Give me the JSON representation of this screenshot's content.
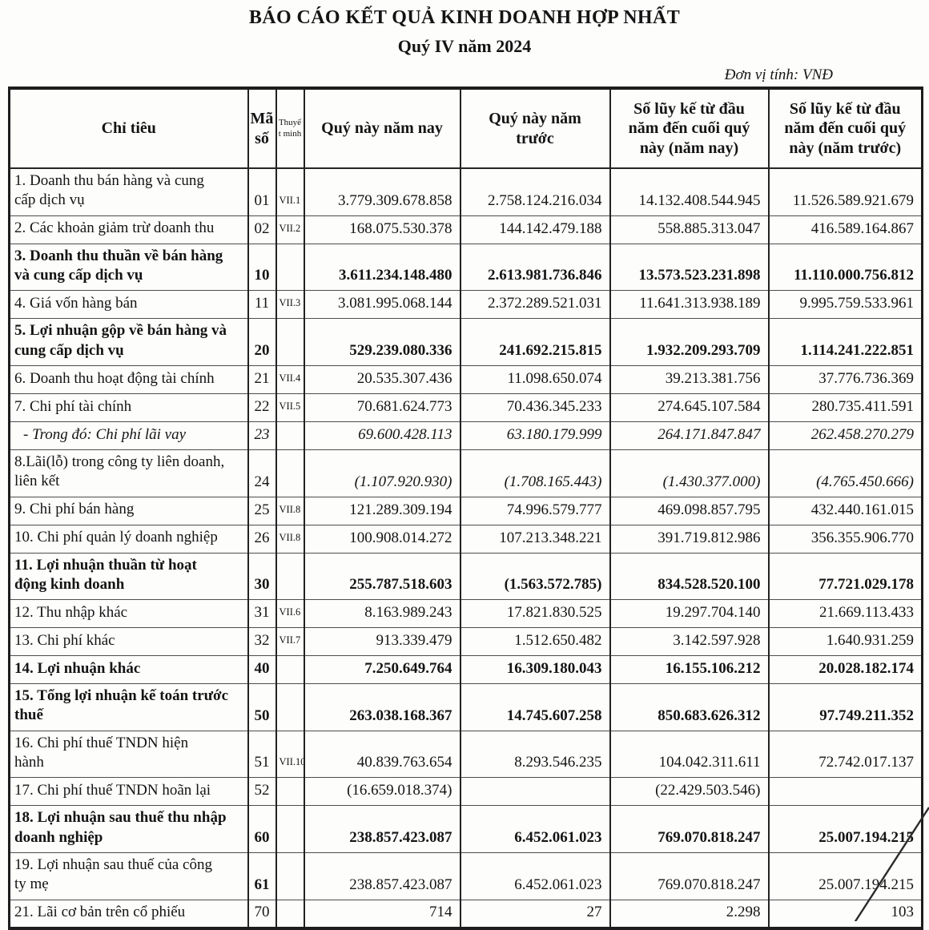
{
  "title": "BÁO CÁO KẾT QUẢ KINH DOANH HỢP NHẤT",
  "subtitle": "Quý IV năm 2024",
  "unit_note": "Đơn vị tính: VNĐ",
  "table": {
    "headers": [
      "Chỉ tiêu",
      "Mã\nsố",
      "Thuyế\nt minh",
      "Quý này năm nay",
      "Quý này năm\ntrước",
      "Số lũy kế từ đầu\nnăm đến cuối quý\nnày (năm nay)",
      "Số lũy kế từ đầu\nnăm đến cuối quý\nnày (năm trước)"
    ],
    "rows": [
      {
        "label": "1. Doanh thu bán hàng và cung\ncấp dịch vụ",
        "code": "01",
        "note": "VII.1",
        "style": "",
        "values": [
          "3.779.309.678.858",
          "2.758.124.216.034",
          "14.132.408.544.945",
          "11.526.589.921.679"
        ]
      },
      {
        "label": "2. Các khoản giảm trừ doanh thu",
        "code": "02",
        "note": "VII.2",
        "style": "",
        "values": [
          "168.075.530.378",
          "144.142.479.188",
          "558.885.313.047",
          "416.589.164.867"
        ]
      },
      {
        "label": "3. Doanh thu thuần về bán hàng\nvà cung cấp dịch vụ",
        "code": "10",
        "note": "",
        "style": "bold",
        "values": [
          "3.611.234.148.480",
          "2.613.981.736.846",
          "13.573.523.231.898",
          "11.110.000.756.812"
        ]
      },
      {
        "label": "4. Giá vốn hàng bán",
        "code": "11",
        "note": "VII.3",
        "style": "",
        "values": [
          "3.081.995.068.144",
          "2.372.289.521.031",
          "11.641.313.938.189",
          "9.995.759.533.961"
        ]
      },
      {
        "label": "5. Lợi nhuận gộp về bán hàng và\ncung cấp dịch vụ",
        "code": "20",
        "note": "",
        "style": "bold",
        "values": [
          "529.239.080.336",
          "241.692.215.815",
          "1.932.209.293.709",
          "1.114.241.222.851"
        ]
      },
      {
        "label": "6. Doanh thu hoạt động tài chính",
        "code": "21",
        "note": "VII.4",
        "style": "",
        "values": [
          "20.535.307.436",
          "11.098.650.074",
          "39.213.381.756",
          "37.776.736.369"
        ]
      },
      {
        "label": "7. Chi phí tài chính",
        "code": "22",
        "note": "VII.5",
        "style": "",
        "values": [
          "70.681.624.773",
          "70.436.345.233",
          "274.645.107.584",
          "280.735.411.591"
        ]
      },
      {
        "label": "- Trong đó: Chi phí lãi vay",
        "code": "23",
        "note": "",
        "style": "italic indent",
        "values": [
          "69.600.428.113",
          "63.180.179.999",
          "264.171.847.847",
          "262.458.270.279"
        ]
      },
      {
        "label": "8.Lãi(lỗ) trong công ty liên doanh,\nliên kết",
        "code": "24",
        "note": "",
        "style": "vals-italic",
        "values": [
          "(1.107.920.930)",
          "(1.708.165.443)",
          "(1.430.377.000)",
          "(4.765.450.666)"
        ]
      },
      {
        "label": "9. Chi phí bán hàng",
        "code": "25",
        "note": "VII.8",
        "style": "",
        "values": [
          "121.289.309.194",
          "74.996.579.777",
          "469.098.857.795",
          "432.440.161.015"
        ]
      },
      {
        "label": "10. Chi phí quản lý doanh nghiệp",
        "code": "26",
        "note": "VII.8",
        "style": "",
        "values": [
          "100.908.014.272",
          "107.213.348.221",
          "391.719.812.986",
          "356.355.906.770"
        ]
      },
      {
        "label": "11. Lợi nhuận thuần từ hoạt\nđộng kinh doanh",
        "code": "30",
        "note": "",
        "style": "bold",
        "values": [
          "255.787.518.603",
          "(1.563.572.785)",
          "834.528.520.100",
          "77.721.029.178"
        ]
      },
      {
        "label": "12. Thu nhập khác",
        "code": "31",
        "note": "VII.6",
        "style": "",
        "values": [
          "8.163.989.243",
          "17.821.830.525",
          "19.297.704.140",
          "21.669.113.433"
        ]
      },
      {
        "label": "13. Chi phí khác",
        "code": "32",
        "note": "VII.7",
        "style": "",
        "values": [
          "913.339.479",
          "1.512.650.482",
          "3.142.597.928",
          "1.640.931.259"
        ]
      },
      {
        "label": "14. Lợi nhuận khác",
        "code": "40",
        "note": "",
        "style": "bold",
        "values": [
          "7.250.649.764",
          "16.309.180.043",
          "16.155.106.212",
          "20.028.182.174"
        ]
      },
      {
        "label": "15. Tổng lợi nhuận kế toán trước\nthuế",
        "code": "50",
        "note": "",
        "style": "bold",
        "values": [
          "263.038.168.367",
          "14.745.607.258",
          "850.683.626.312",
          "97.749.211.352"
        ]
      },
      {
        "label": "16. Chi phí thuế TNDN hiện\nhành",
        "code": "51",
        "note": "VII.10",
        "style": "",
        "values": [
          "40.839.763.654",
          "8.293.546.235",
          "104.042.311.611",
          "72.742.017.137"
        ]
      },
      {
        "label": "17. Chi phí thuế TNDN hoãn lại",
        "code": "52",
        "note": "",
        "style": "",
        "values": [
          "(16.659.018.374)",
          "",
          "(22.429.503.546)",
          ""
        ]
      },
      {
        "label": "18. Lợi nhuận sau thuế thu nhập\ndoanh nghiệp",
        "code": "60",
        "note": "",
        "style": "bold",
        "values": [
          "238.857.423.087",
          "6.452.061.023",
          "769.070.818.247",
          "25.007.194.215"
        ]
      },
      {
        "label": "19. Lợi nhuận sau thuế của công\nty mẹ",
        "code": "61",
        "note": "",
        "style": "code-bold",
        "values": [
          "238.857.423.087",
          "6.452.061.023",
          "769.070.818.247",
          "25.007.194.215"
        ]
      },
      {
        "label": "21. Lãi cơ bản trên cổ phiếu",
        "code": "70",
        "note": "",
        "style": "",
        "values": [
          "714",
          "27",
          "2.298",
          "103"
        ]
      }
    ]
  }
}
